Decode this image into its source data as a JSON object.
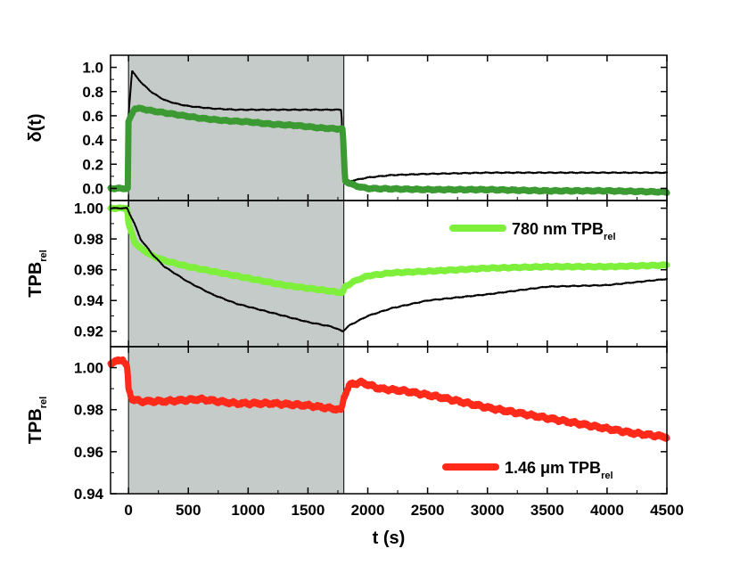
{
  "chart_data": [
    {
      "type": "line",
      "panel": "top",
      "ylabel": "δ(t)",
      "xlim": [
        -150,
        4500
      ],
      "ylim": [
        -0.1,
        1.1
      ],
      "yticks": [
        0.0,
        0.2,
        0.4,
        0.6,
        0.8,
        1.0
      ],
      "ytick_labels": [
        "0.0",
        "0.2",
        "0.4",
        "0.6",
        "0.8",
        "1.0"
      ],
      "shaded_interval": [
        0,
        1800
      ],
      "series": [
        {
          "name": "black",
          "color": "#000000",
          "style": "thin",
          "x": [
            -150,
            -5,
            0,
            30,
            60,
            120,
            200,
            300,
            400,
            500,
            700,
            900,
            1200,
            1500,
            1780,
            1790,
            1810,
            1850,
            1900,
            2000,
            2200,
            2500,
            3000,
            3500,
            4000,
            4500
          ],
          "y": [
            0.0,
            0.0,
            0.6,
            0.97,
            0.93,
            0.86,
            0.79,
            0.73,
            0.7,
            0.68,
            0.66,
            0.65,
            0.65,
            0.65,
            0.65,
            0.3,
            0.08,
            0.06,
            0.07,
            0.09,
            0.11,
            0.12,
            0.13,
            0.13,
            0.13,
            0.13
          ]
        },
        {
          "name": "green",
          "color": "#3c9a32",
          "style": "thick",
          "x": [
            -150,
            -5,
            0,
            50,
            100,
            200,
            400,
            600,
            800,
            1000,
            1200,
            1400,
            1600,
            1790,
            1810,
            1900,
            2000,
            2500,
            3000,
            3500,
            4000,
            4500
          ],
          "y": [
            0.0,
            0.0,
            0.55,
            0.66,
            0.66,
            0.64,
            0.61,
            0.58,
            0.56,
            0.55,
            0.53,
            0.52,
            0.5,
            0.49,
            0.06,
            0.02,
            0.0,
            -0.01,
            -0.01,
            -0.02,
            -0.02,
            -0.03
          ]
        }
      ]
    },
    {
      "type": "line",
      "panel": "middle",
      "ylabel": "TPB",
      "ylabel_sub": "rel",
      "xlim": [
        -150,
        4500
      ],
      "ylim": [
        0.91,
        1.005
      ],
      "yticks": [
        0.92,
        0.94,
        0.96,
        0.98,
        1.0
      ],
      "ytick_labels": [
        "0.92",
        "0.94",
        "0.96",
        "0.98",
        "1.00"
      ],
      "shaded_interval": [
        0,
        1800
      ],
      "legend": {
        "label": "780 nm TPB",
        "label_sub": "rel",
        "color": "#7ef03c",
        "position": "upper-right"
      },
      "series": [
        {
          "name": "780 nm TPB_rel",
          "color": "#7ef03c",
          "style": "thick",
          "x": [
            -150,
            -10,
            0,
            50,
            100,
            200,
            300,
            500,
            700,
            900,
            1100,
            1300,
            1500,
            1700,
            1790,
            1810,
            1900,
            2000,
            2200,
            2500,
            3000,
            3500,
            4000,
            4500
          ],
          "y": [
            1.0,
            1.0,
            0.99,
            0.978,
            0.974,
            0.969,
            0.966,
            0.962,
            0.959,
            0.956,
            0.953,
            0.95,
            0.948,
            0.946,
            0.945,
            0.949,
            0.953,
            0.956,
            0.958,
            0.959,
            0.961,
            0.962,
            0.962,
            0.963
          ]
        },
        {
          "name": "black",
          "color": "#000000",
          "style": "thin",
          "x": [
            -150,
            -10,
            0,
            50,
            100,
            200,
            300,
            500,
            700,
            900,
            1100,
            1300,
            1500,
            1700,
            1790,
            1850,
            2000,
            2200,
            2500,
            3000,
            3500,
            4000,
            4500
          ],
          "y": [
            1.0,
            1.0,
            0.998,
            0.99,
            0.98,
            0.97,
            0.962,
            0.952,
            0.944,
            0.938,
            0.934,
            0.93,
            0.926,
            0.923,
            0.92,
            0.924,
            0.93,
            0.935,
            0.94,
            0.944,
            0.949,
            0.95,
            0.954
          ]
        }
      ]
    },
    {
      "type": "line",
      "panel": "bottom",
      "ylabel": "TPB",
      "ylabel_sub": "rel",
      "xlabel": "t (s)",
      "xlim": [
        -150,
        4500
      ],
      "ylim": [
        0.94,
        1.01
      ],
      "yticks": [
        0.94,
        0.96,
        0.98,
        1.0
      ],
      "ytick_labels": [
        "0.94",
        "0.96",
        "0.98",
        "1.00"
      ],
      "xticks": [
        0,
        500,
        1000,
        1500,
        2000,
        2500,
        3000,
        3500,
        4000,
        4500
      ],
      "xtick_labels": [
        "0",
        "500",
        "1000",
        "1500",
        "2000",
        "2500",
        "3000",
        "3500",
        "4000",
        "4500"
      ],
      "shaded_interval": [
        0,
        1800
      ],
      "legend": {
        "label": "1.46 μm TPB",
        "label_sub": "rel",
        "color": "#ff2a1a",
        "position": "lower-right"
      },
      "series": [
        {
          "name": "1.46 μm TPB_rel",
          "color": "#ff2a1a",
          "style": "thick",
          "x": [
            -150,
            -50,
            -10,
            0,
            30,
            100,
            300,
            600,
            900,
            1200,
            1500,
            1780,
            1800,
            1850,
            1950,
            2100,
            2300,
            2600,
            3000,
            3300,
            3600,
            3900,
            4200,
            4500
          ],
          "y": [
            1.002,
            1.004,
            1.0,
            0.99,
            0.985,
            0.984,
            0.984,
            0.985,
            0.983,
            0.983,
            0.982,
            0.98,
            0.986,
            0.992,
            0.993,
            0.99,
            0.989,
            0.986,
            0.981,
            0.978,
            0.975,
            0.972,
            0.969,
            0.967
          ]
        }
      ]
    }
  ]
}
